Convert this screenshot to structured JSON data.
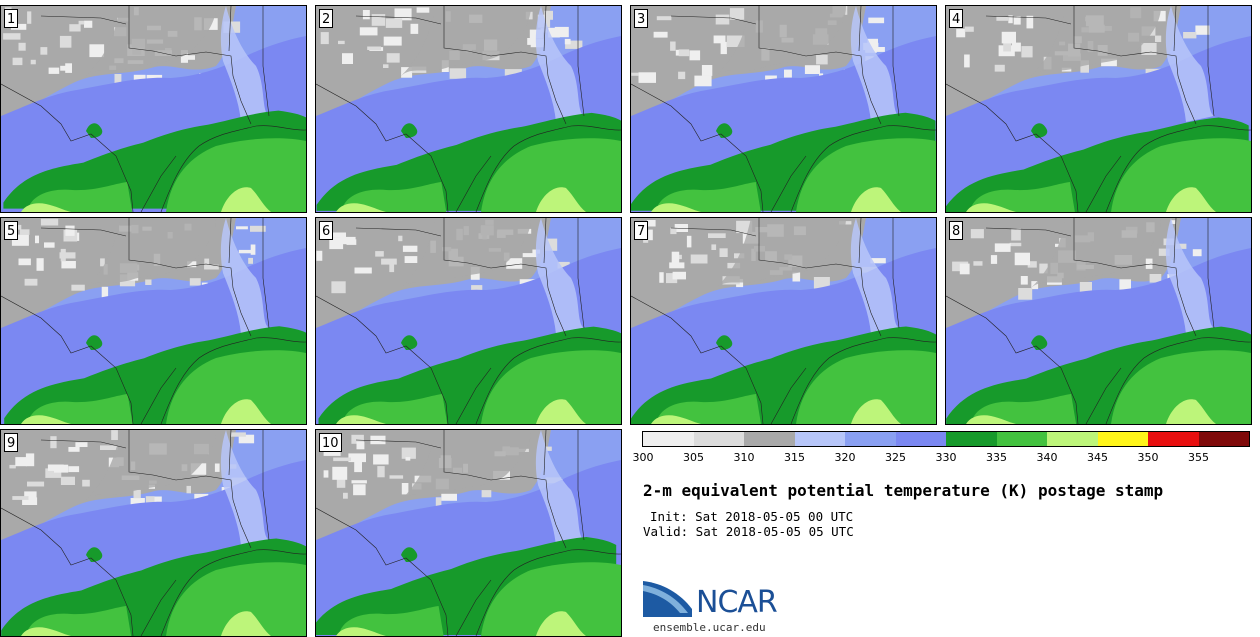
{
  "panels": [
    {
      "label": "1"
    },
    {
      "label": "2"
    },
    {
      "label": "3"
    },
    {
      "label": "4"
    },
    {
      "label": "5"
    },
    {
      "label": "6"
    },
    {
      "label": "7"
    },
    {
      "label": "8"
    },
    {
      "label": "9"
    },
    {
      "label": "10"
    }
  ],
  "colorbar": {
    "segments": [
      {
        "from": 300,
        "to": 305,
        "color": "#efefef"
      },
      {
        "from": 305,
        "to": 310,
        "color": "#dcdcdc"
      },
      {
        "from": 310,
        "to": 315,
        "color": "#a9a9a9"
      },
      {
        "from": 315,
        "to": 320,
        "color": "#b7c6f9"
      },
      {
        "from": 320,
        "to": 325,
        "color": "#8aa0f2"
      },
      {
        "from": 325,
        "to": 330,
        "color": "#7b88f2"
      },
      {
        "from": 330,
        "to": 335,
        "color": "#179a2b"
      },
      {
        "from": 335,
        "to": 340,
        "color": "#43c23f"
      },
      {
        "from": 340,
        "to": 345,
        "color": "#bdf57a"
      },
      {
        "from": 345,
        "to": 350,
        "color": "#fff51a"
      },
      {
        "from": 350,
        "to": 355,
        "color": "#e80f0f"
      },
      {
        "from": 355,
        "to": 360,
        "color": "#7f0a0a"
      }
    ],
    "ticks": [
      "300",
      "305",
      "310",
      "315",
      "320",
      "325",
      "330",
      "335",
      "340",
      "345",
      "350",
      "355"
    ]
  },
  "title": "2-m equivalent potential temperature (K) postage stamp",
  "init": "Init: Sat 2018-05-05 00 UTC",
  "valid": "Valid: Sat 2018-05-05 05 UTC",
  "logo_text": "NCAR",
  "site": "ensemble.ucar.edu"
}
